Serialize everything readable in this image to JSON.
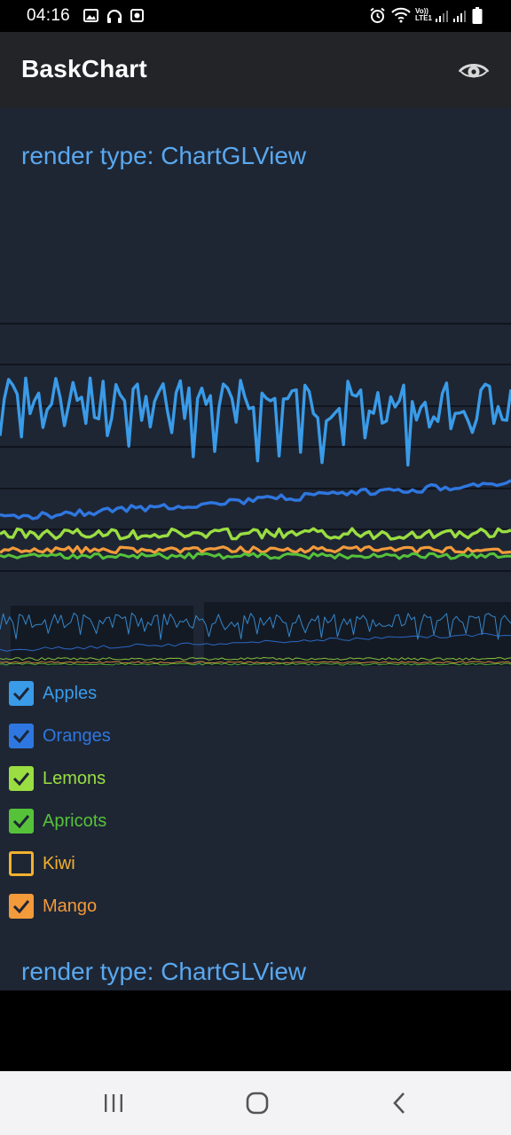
{
  "status_bar": {
    "time": "04:16",
    "left_icons": [
      "gallery-icon",
      "headset-icon",
      "screen-record-icon"
    ],
    "right_icons": [
      "alarm-icon",
      "wifi-icon",
      "volte-icon",
      "signal-icon",
      "signal-icon",
      "battery-icon"
    ],
    "volte_label": "Vo)) LTE1"
  },
  "app_bar": {
    "title": "BaskChart",
    "action_icon": "eye-icon"
  },
  "render_label_top": "render type: ChartGLView",
  "render_label_bottom": "render type: ChartGLView",
  "colors": {
    "background": "#1e2634",
    "apples": "#3a9be8",
    "oranges": "#2f77e0",
    "lemons": "#9ade41",
    "apricots": "#56c23a",
    "kiwi": "#f2b12e",
    "mango": "#f39a3b"
  },
  "chart_data": {
    "type": "line",
    "title": "",
    "grid": true,
    "legend": "bottom-left",
    "series": [
      {
        "name": "Apples",
        "visible": true,
        "color": "#3a9be8"
      },
      {
        "name": "Oranges",
        "visible": true,
        "color": "#2f77e0"
      },
      {
        "name": "Lemons",
        "visible": true,
        "color": "#9ade41"
      },
      {
        "name": "Apricots",
        "visible": true,
        "color": "#56c23a"
      },
      {
        "name": "Kiwi",
        "visible": false,
        "color": "#f2b12e"
      },
      {
        "name": "Mango",
        "visible": true,
        "color": "#f39a3b"
      }
    ]
  },
  "legend": [
    {
      "label": "Apples",
      "checked": true,
      "color": "#3a9be8"
    },
    {
      "label": "Oranges",
      "checked": true,
      "color": "#2f77e0"
    },
    {
      "label": "Lemons",
      "checked": true,
      "color": "#9ade41"
    },
    {
      "label": "Apricots",
      "checked": true,
      "color": "#56c23a"
    },
    {
      "label": "Kiwi",
      "checked": false,
      "color": "#f2b12e"
    },
    {
      "label": "Mango",
      "checked": true,
      "color": "#f39a3b"
    }
  ],
  "nav_bar": {
    "icons": [
      "recent-apps-icon",
      "home-icon",
      "back-icon"
    ]
  }
}
